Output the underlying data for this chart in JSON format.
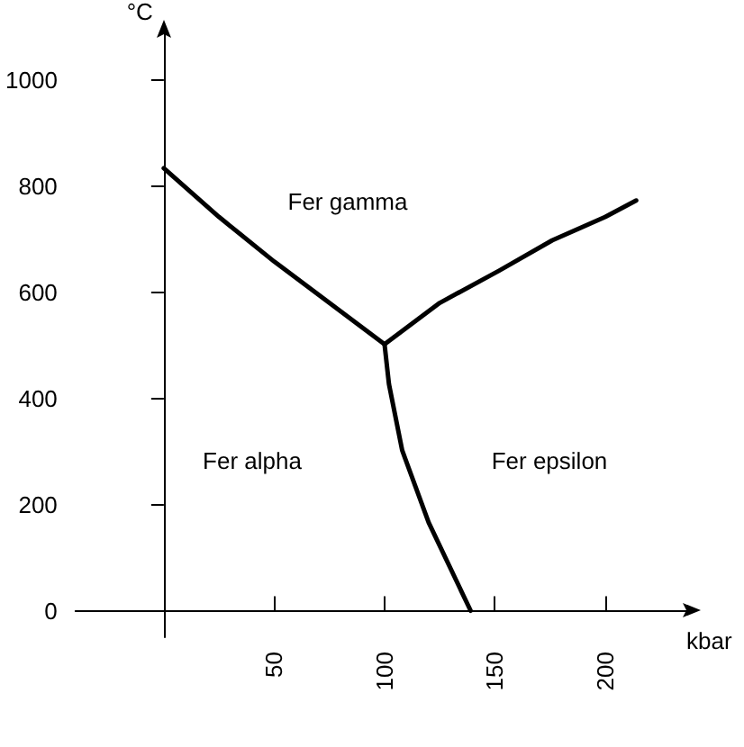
{
  "chart_data": {
    "type": "line",
    "xlabel": "kbar",
    "ylabel": "°C",
    "xlim": [
      -40,
      240
    ],
    "ylim": [
      -50,
      1100
    ],
    "xticks": [
      50,
      100,
      150,
      200
    ],
    "yticks": [
      0,
      200,
      400,
      600,
      800,
      1000
    ],
    "grid": false,
    "marker": "none",
    "line_style": "solid",
    "series": [
      {
        "color": "#000000",
        "x": [
          0,
          25,
          50,
          75,
          100
        ],
        "values": [
          834,
          742,
          658,
          580,
          502
        ]
      },
      {
        "color": "#000000",
        "x": [
          100,
          125,
          152,
          176,
          200,
          214
        ],
        "values": [
          502,
          580,
          641,
          698,
          742,
          773
        ]
      },
      {
        "color": "#000000",
        "x": [
          100,
          102,
          108,
          120,
          139
        ],
        "values": [
          502,
          427,
          302,
          166,
          0
        ]
      }
    ],
    "annotations": [
      "Fer gamma",
      "Fer alpha",
      "Fer epsilon"
    ]
  }
}
